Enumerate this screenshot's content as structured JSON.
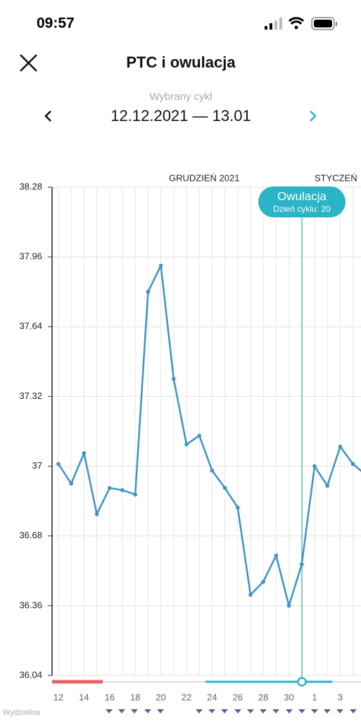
{
  "status_bar": {
    "time": "09:57"
  },
  "header": {
    "title": "PTC i owulacja",
    "cycle_caption": "Wybrany cykl",
    "cycle_range": "12.12.2021 — 13.01"
  },
  "chart_data": {
    "type": "line",
    "months": [
      "GRUDZIEŃ 2021",
      "STYCZEŃ"
    ],
    "categories": [
      "12",
      null,
      "14",
      null,
      "16",
      null,
      "18",
      null,
      "20",
      null,
      "22",
      null,
      "24",
      null,
      "26",
      null,
      "28",
      null,
      "30",
      null,
      "1",
      null,
      "3",
      null,
      null
    ],
    "series": [
      {
        "name": "PTC",
        "color": "#3d93c4",
        "values": [
          37.01,
          36.92,
          37.06,
          36.78,
          36.9,
          36.89,
          36.87,
          37.8,
          37.92,
          37.4,
          37.1,
          37.14,
          36.98,
          36.9,
          36.81,
          36.41,
          36.47,
          36.59,
          36.36,
          36.55,
          37.0,
          36.91,
          37.09,
          37.01,
          36.96
        ]
      }
    ],
    "ylim": [
      36.04,
      38.28
    ],
    "yticks": [
      36.04,
      36.36,
      36.68,
      37,
      37.32,
      37.64,
      37.96,
      38.28
    ],
    "grid": true,
    "annotation": {
      "title": "Owulacja",
      "subtitle": "Dzień cyklu: 20"
    },
    "footer_label": "Wydzielina"
  }
}
